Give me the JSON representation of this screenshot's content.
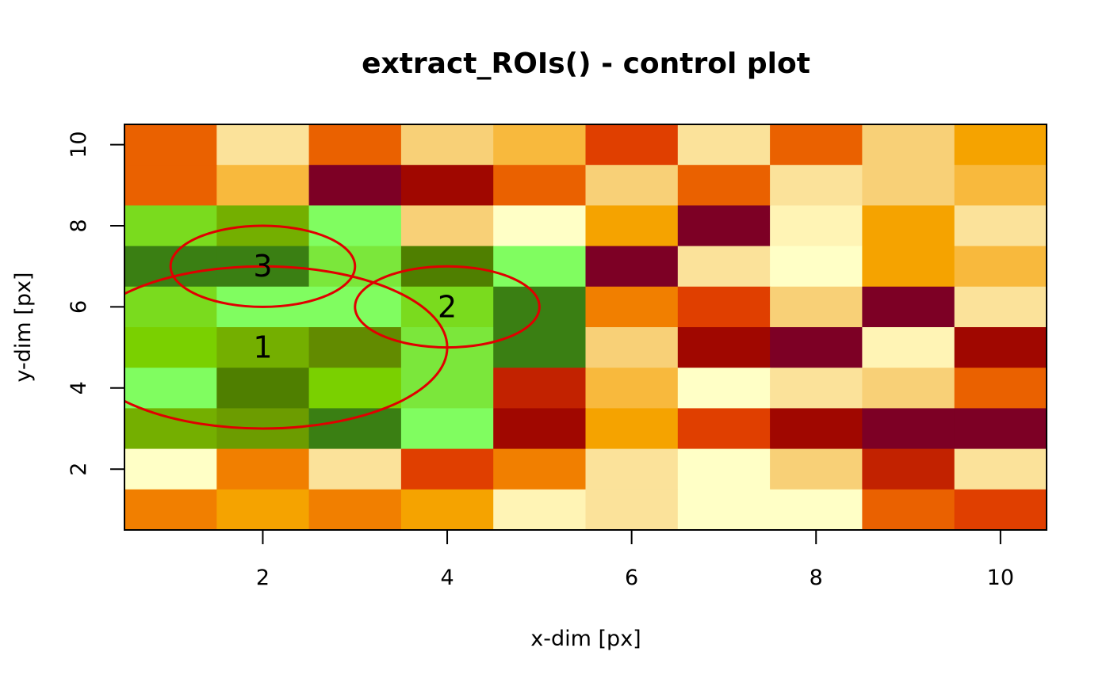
{
  "chart_data": {
    "type": "heatmap",
    "title": "extract_ROIs() - control plot",
    "xlabel": "x-dim [px]",
    "ylabel": "y-dim [px]",
    "xlim": [
      0.5,
      10.5
    ],
    "ylim": [
      0.5,
      10.5
    ],
    "x_ticks": [
      "2",
      "4",
      "6",
      "8",
      "10"
    ],
    "y_ticks": [
      "2",
      "4",
      "6",
      "8",
      "10"
    ],
    "grid": false,
    "legend": "none",
    "cell_colors_top_to_bottom": [
      [
        "#EA6100",
        "#FBE29A",
        "#EA6100",
        "#F8D077",
        "#F8B93D",
        "#E03F00",
        "#FBE29A",
        "#EA6100",
        "#F8D077",
        "#F5A300"
      ],
      [
        "#EA6100",
        "#F8B93D",
        "#7D0025",
        "#A00700",
        "#EA6100",
        "#F8D077",
        "#EA6100",
        "#FBE29A",
        "#F8D077",
        "#F8B93D"
      ],
      [
        "#7ADB1E",
        "#74AF00",
        "#80FD60",
        "#F8D077",
        "#FFFFC6",
        "#F5A300",
        "#7D0025",
        "#FFF4B5",
        "#F5A300",
        "#FBE29A"
      ],
      [
        "#3A7F13",
        "#3A7F13",
        "#7BE73B",
        "#4F7F00",
        "#80FD60",
        "#7D0025",
        "#FBE29A",
        "#FFFFC6",
        "#F5A300",
        "#F8B93D"
      ],
      [
        "#7ADB1E",
        "#80FD60",
        "#80FD60",
        "#7ADB1E",
        "#3A7F13",
        "#F17F00",
        "#E03F00",
        "#F8D077",
        "#7D0025",
        "#FBE29A"
      ],
      [
        "#7AD000",
        "#74AF00",
        "#628B00",
        "#7BE73B",
        "#3A7F13",
        "#F8D077",
        "#A00700",
        "#7D0025",
        "#FFF4B5",
        "#A00700"
      ],
      [
        "#80FD60",
        "#4F7F00",
        "#7AD000",
        "#7BE73B",
        "#C22200",
        "#F8B93D",
        "#FFFFC6",
        "#FBE29A",
        "#F8D077",
        "#EA6100"
      ],
      [
        "#74AF00",
        "#6C9C00",
        "#3A7F13",
        "#80FD60",
        "#A00700",
        "#F5A300",
        "#E03F00",
        "#A00700",
        "#7D0025",
        "#7D0025"
      ],
      [
        "#FFFFC6",
        "#F17F00",
        "#FBE29A",
        "#E03F00",
        "#F17F00",
        "#FBE29A",
        "#FFFFC6",
        "#F8D077",
        "#C22200",
        "#FBE29A"
      ],
      [
        "#F17F00",
        "#F5A300",
        "#F17F00",
        "#F5A300",
        "#FFF4B5",
        "#FBE29A",
        "#FFFFC6",
        "#FFFFC6",
        "#EA6100",
        "#E03F00"
      ]
    ],
    "rois": [
      {
        "label": "1",
        "x": 2,
        "y": 5,
        "x_radius": 2,
        "y_radius": 2
      },
      {
        "label": "2",
        "x": 4,
        "y": 6,
        "x_radius": 1,
        "y_radius": 1
      },
      {
        "label": "3",
        "x": 2,
        "y": 7,
        "x_radius": 1,
        "y_radius": 1
      }
    ],
    "roi_color": "#E00000"
  }
}
